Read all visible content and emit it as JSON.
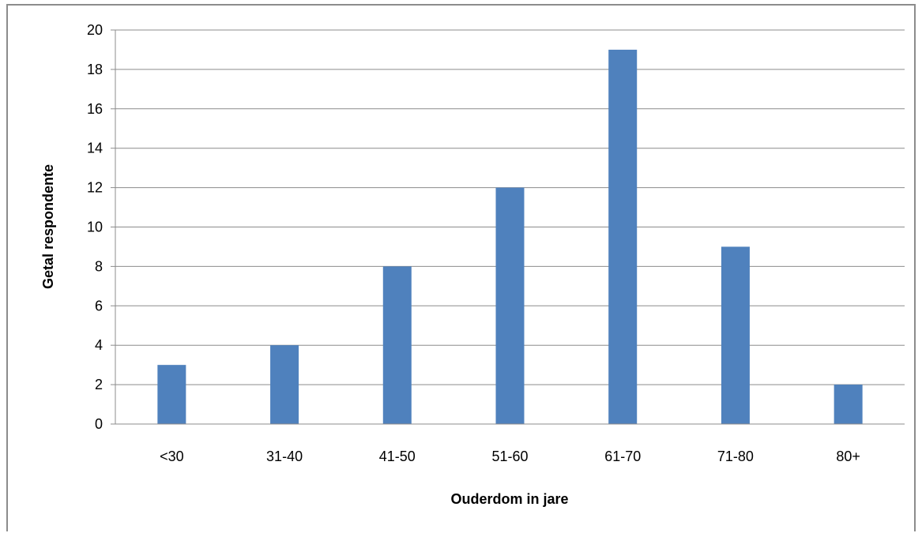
{
  "chart_data": {
    "type": "bar",
    "title": "",
    "xlabel": "Ouderdom in jare",
    "ylabel": "Getal respondente",
    "categories": [
      "<30",
      "31-40",
      "41-50",
      "51-60",
      "61-70",
      "71-80",
      "80+"
    ],
    "values": [
      3,
      4,
      8,
      12,
      19,
      9,
      2
    ],
    "ylim": [
      0,
      20
    ],
    "yticks": [
      0,
      2,
      4,
      6,
      8,
      10,
      12,
      14,
      16,
      18,
      20
    ],
    "grid": true,
    "legend": "none",
    "bar_color": "#4f81bd",
    "grid_color": "#8c8c8c",
    "axis_color": "#8c8c8c"
  }
}
